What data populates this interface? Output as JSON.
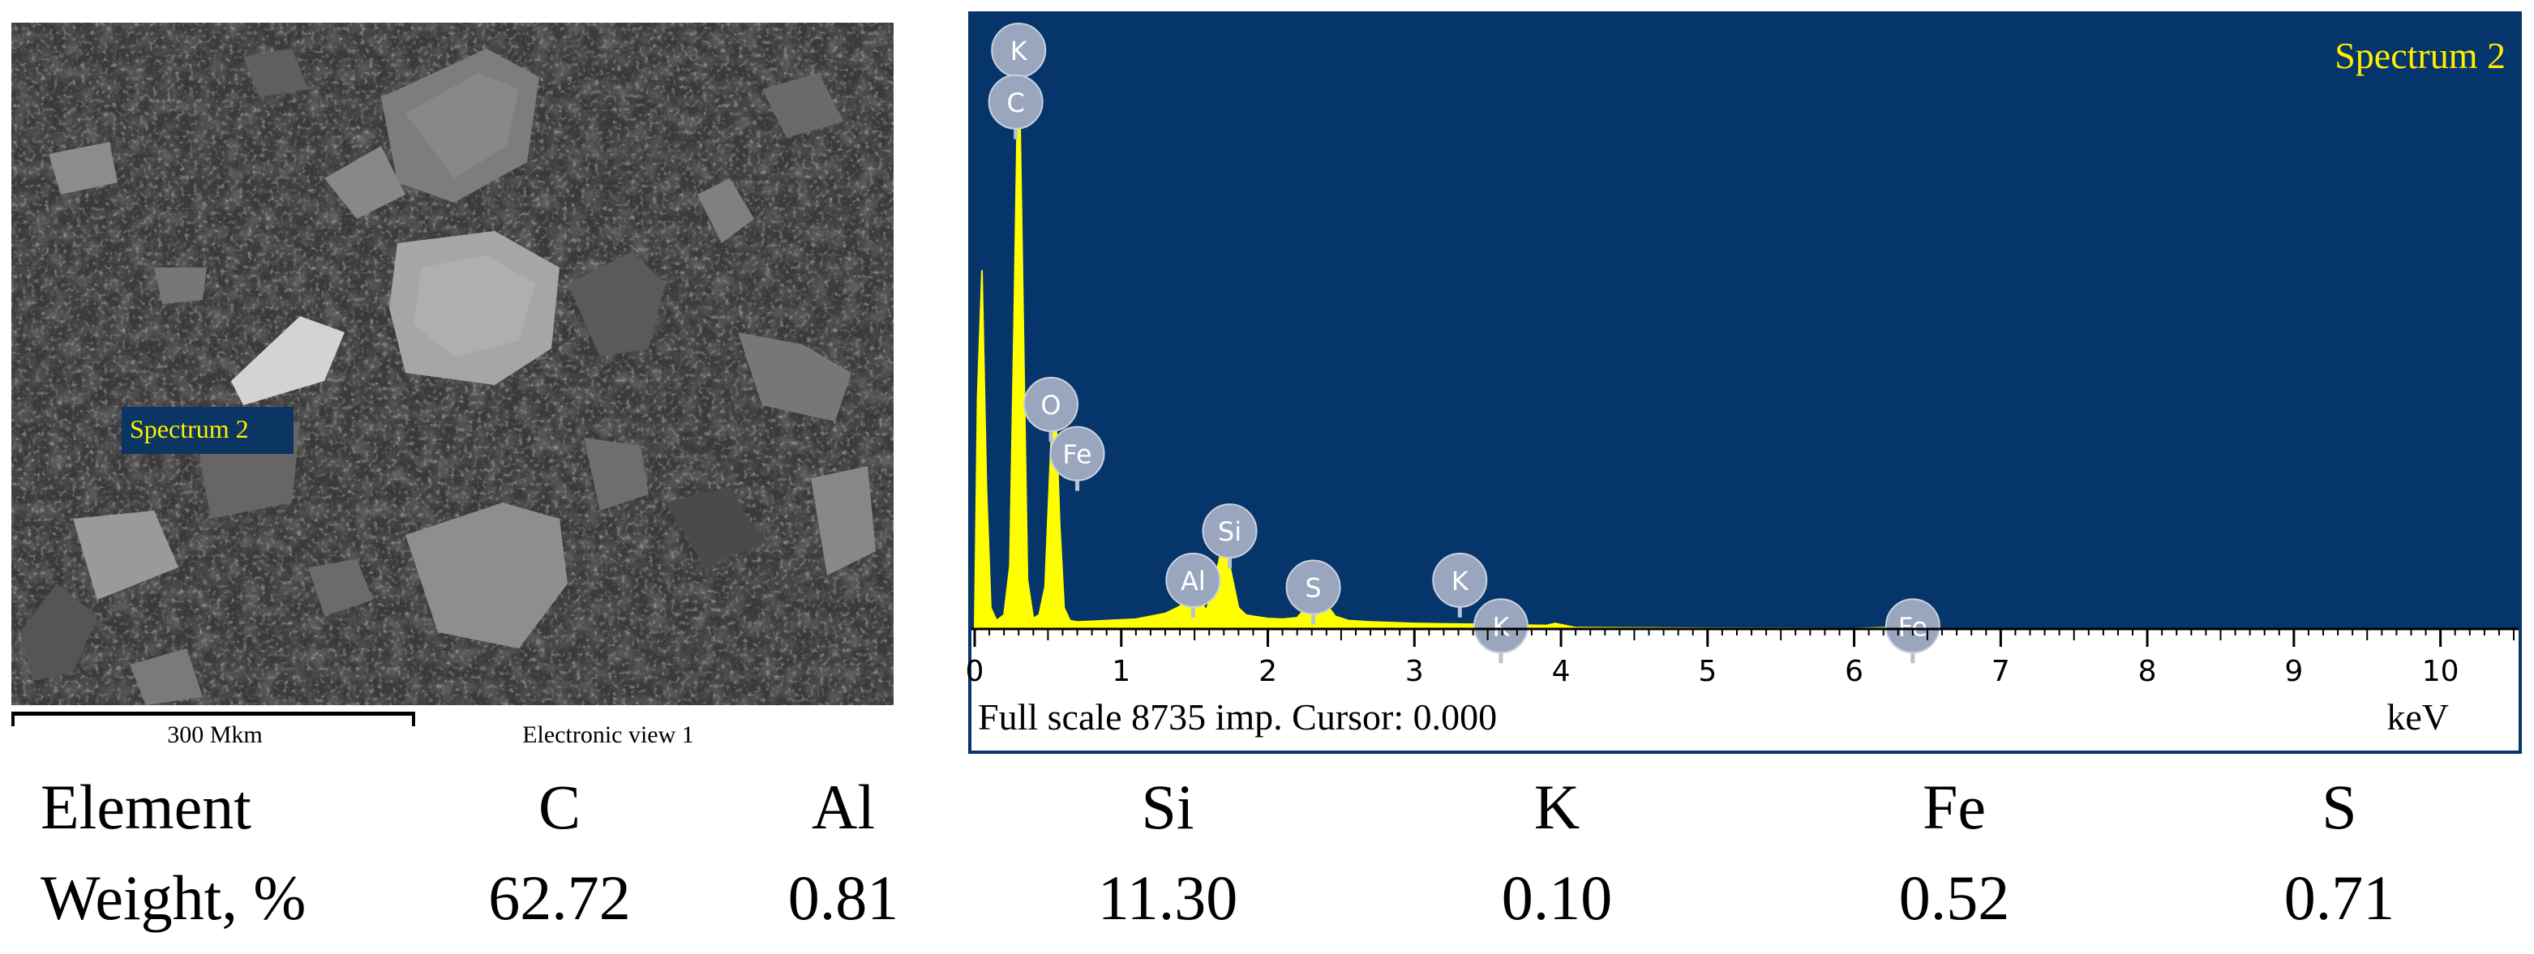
{
  "sem_image": {
    "spectrum_label": "Spectrum 2",
    "scale_bar_label": "300 Mkm",
    "view_label": "Electronic view 1"
  },
  "chart_data": {
    "type": "line",
    "title": "Spectrum 2",
    "xlabel": "keV",
    "ylabel": "",
    "xlim": [
      0,
      10.5
    ],
    "ylim": [
      0,
      8735
    ],
    "x_ticks": [
      0,
      1,
      2,
      3,
      4,
      5,
      6,
      7,
      8,
      9,
      10
    ],
    "footer_text": "Full scale 8735 imp. Cursor: 0.000",
    "background_color": "#06356b",
    "line_color": "#ffff00",
    "series": [
      {
        "x": [
          0,
          0.02,
          0.05,
          0.08,
          0.11,
          0.15,
          0.2,
          0.24,
          0.27,
          0.3,
          0.33,
          0.36,
          0.4,
          0.44,
          0.48,
          0.52,
          0.55,
          0.58,
          0.61,
          0.65,
          0.7,
          0.8,
          0.9,
          1.0,
          1.1,
          1.2,
          1.3,
          1.4,
          1.45,
          1.49,
          1.53,
          1.58,
          1.63,
          1.68,
          1.72,
          1.76,
          1.8,
          1.85,
          1.9,
          2.0,
          2.1,
          2.2,
          2.26,
          2.31,
          2.35,
          2.4,
          2.46,
          2.55,
          2.7,
          3.0,
          3.3,
          3.5,
          3.7,
          3.9,
          3.96,
          4.1,
          4.5,
          5.0,
          5.5,
          6.0,
          6.4,
          6.45,
          7.0,
          8.0,
          9.0,
          10.5
        ],
        "y": [
          0,
          3300,
          5100,
          2000,
          300,
          120,
          200,
          900,
          4500,
          8500,
          4500,
          700,
          150,
          200,
          600,
          2600,
          3300,
          1500,
          300,
          120,
          100,
          110,
          120,
          130,
          140,
          180,
          220,
          320,
          500,
          700,
          450,
          260,
          600,
          1100,
          1100,
          700,
          300,
          200,
          180,
          150,
          140,
          160,
          300,
          500,
          560,
          350,
          180,
          120,
          100,
          80,
          70,
          65,
          55,
          50,
          80,
          20,
          15,
          10,
          8,
          6,
          30,
          6,
          4,
          3,
          2,
          0
        ]
      }
    ],
    "element_markers": [
      {
        "label": "K",
        "x": 0.3,
        "y": 8735
      },
      {
        "label": "C",
        "x": 0.28,
        "y": 8000
      },
      {
        "label": "O",
        "x": 0.52,
        "y": 3700
      },
      {
        "label": "Fe",
        "x": 0.7,
        "y": 3000
      },
      {
        "label": "Al",
        "x": 1.49,
        "y": 1200
      },
      {
        "label": "Si",
        "x": 1.74,
        "y": 1900
      },
      {
        "label": "S",
        "x": 2.31,
        "y": 1100
      },
      {
        "label": "K",
        "x": 3.31,
        "y": 1200
      },
      {
        "label": "K",
        "x": 3.59,
        "y": 550
      },
      {
        "label": "Fe",
        "x": 6.4,
        "y": 550
      }
    ]
  },
  "composition_table": {
    "header": [
      "Element",
      "C",
      "Al",
      "Si",
      "K",
      "Fe",
      "S"
    ],
    "row": [
      "Weight, %",
      "62.72",
      "0.81",
      "11.30",
      "0.10",
      "0.52",
      "0.71"
    ]
  }
}
